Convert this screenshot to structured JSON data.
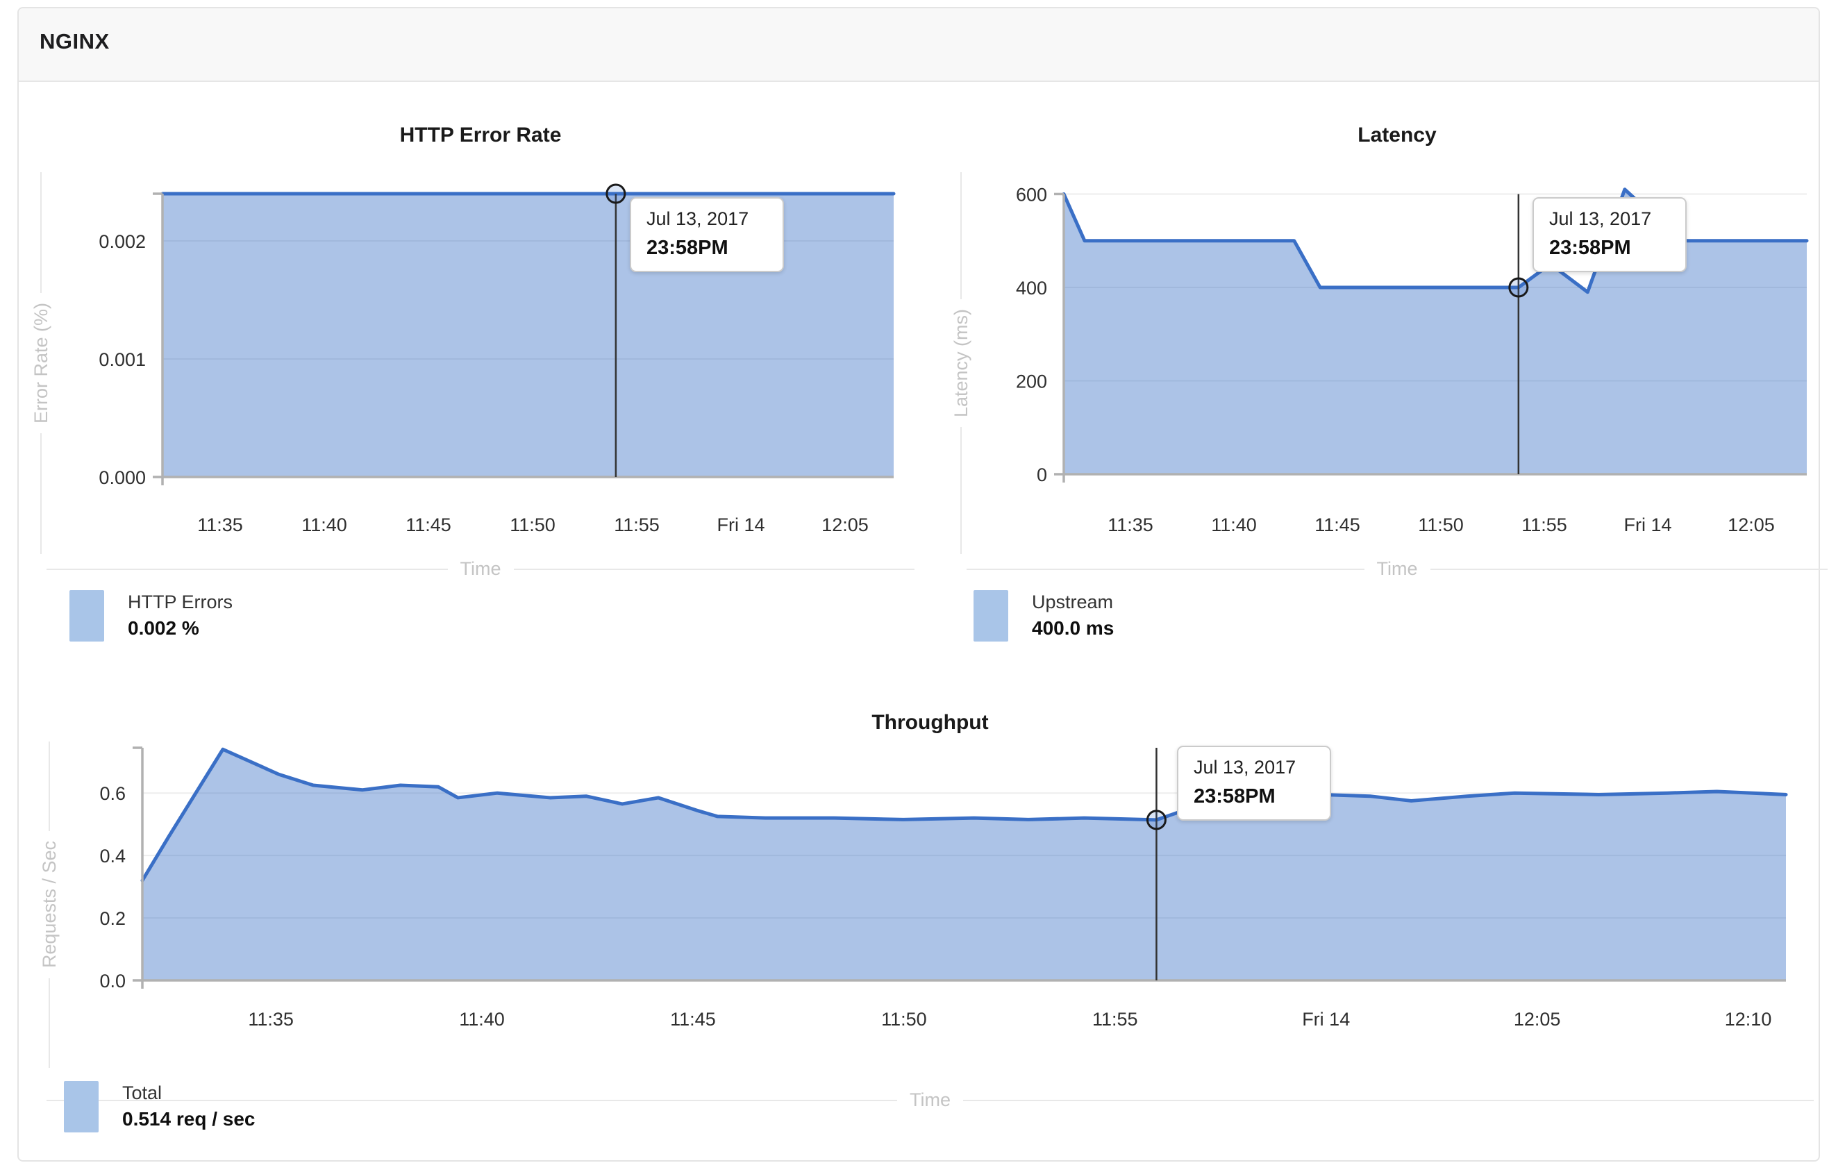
{
  "header": {
    "title": "NGINX"
  },
  "colors": {
    "series_line": "#3a6fc6",
    "series_fill": "#a9c5e8",
    "fill_opacity": 0.55,
    "axis_line": "#b1b1b1",
    "grid_line": "#ededed",
    "tick_text": "#2f2f2f",
    "axis_title": "#c4c4c4",
    "marker_line": "#333333",
    "marker_ring": "#1a1a1a"
  },
  "chart_data": [
    {
      "type": "area",
      "title": "HTTP Error Rate",
      "xlabel": "Time",
      "ylabel": "Error Rate (%)",
      "ylim": [
        0,
        0.0024
      ],
      "axis_top": 0.0024,
      "yticks": [
        {
          "v": 0.002,
          "label": "0.002"
        },
        {
          "v": 0.001,
          "label": "0.001"
        },
        {
          "v": 0,
          "label": "0.000"
        }
      ],
      "xticks": [
        {
          "f": 0.0788,
          "label": "11:35"
        },
        {
          "f": 0.2213,
          "label": "11:40"
        },
        {
          "f": 0.3637,
          "label": "11:45"
        },
        {
          "f": 0.5062,
          "label": "11:50"
        },
        {
          "f": 0.6486,
          "label": "11:55"
        },
        {
          "f": 0.7911,
          "label": "Fri 14"
        },
        {
          "f": 0.9335,
          "label": "12:05"
        }
      ],
      "points": [
        {
          "f": 0,
          "v": 0.0024
        },
        {
          "f": 1,
          "v": 0.0024
        }
      ],
      "marker": {
        "f": 0.62,
        "v": 0.0024
      },
      "tooltip": {
        "date": "Jul 13, 2017",
        "time": "23:58PM"
      },
      "legend": {
        "label": "HTTP Errors",
        "value": "0.002 %"
      }
    },
    {
      "type": "area",
      "title": "Latency",
      "xlabel": "Time",
      "ylabel": "Latency (ms)",
      "ylim": [
        0,
        620
      ],
      "axis_top": 600,
      "yticks": [
        {
          "v": 600,
          "label": "600"
        },
        {
          "v": 400,
          "label": "400"
        },
        {
          "v": 200,
          "label": "200"
        },
        {
          "v": 0,
          "label": "0"
        }
      ],
      "xticks": [
        {
          "f": 0.0897,
          "label": "11:35"
        },
        {
          "f": 0.229,
          "label": "11:40"
        },
        {
          "f": 0.3682,
          "label": "11:45"
        },
        {
          "f": 0.5075,
          "label": "11:50"
        },
        {
          "f": 0.6467,
          "label": "11:55"
        },
        {
          "f": 0.786,
          "label": "Fri 14"
        },
        {
          "f": 0.9252,
          "label": "12:05"
        }
      ],
      "points": [
        {
          "f": 0,
          "v": 600
        },
        {
          "f": 0.028,
          "v": 500
        },
        {
          "f": 0.31,
          "v": 500
        },
        {
          "f": 0.345,
          "v": 400
        },
        {
          "f": 0.612,
          "v": 400
        },
        {
          "f": 0.655,
          "v": 450
        },
        {
          "f": 0.705,
          "v": 390
        },
        {
          "f": 0.755,
          "v": 610
        },
        {
          "f": 0.83,
          "v": 500
        },
        {
          "f": 1,
          "v": 500
        }
      ],
      "marker": {
        "f": 0.612,
        "v": 400
      },
      "tooltip": {
        "date": "Jul 13, 2017",
        "time": "23:58PM"
      },
      "legend": {
        "label": "Upstream",
        "value": "400.0 ms"
      }
    },
    {
      "type": "area",
      "title": "Throughput",
      "xlabel": "Time",
      "ylabel": "Requests / Sec",
      "ylim": [
        0,
        0.745
      ],
      "axis_top": 0.745,
      "yticks": [
        {
          "v": 0.6,
          "label": "0.6"
        },
        {
          "v": 0.4,
          "label": "0.4"
        },
        {
          "v": 0.2,
          "label": "0.2"
        },
        {
          "v": 0,
          "label": "0.0"
        }
      ],
      "xticks": [
        {
          "f": 0.0782,
          "label": "11:35"
        },
        {
          "f": 0.2066,
          "label": "11:40"
        },
        {
          "f": 0.335,
          "label": "11:45"
        },
        {
          "f": 0.4634,
          "label": "11:50"
        },
        {
          "f": 0.5918,
          "label": "11:55"
        },
        {
          "f": 0.7202,
          "label": "Fri 14"
        },
        {
          "f": 0.8486,
          "label": "12:05"
        },
        {
          "f": 0.977,
          "label": "12:10"
        }
      ],
      "points": [
        {
          "f": 0,
          "v": 0.32
        },
        {
          "f": 0.016,
          "v": 0.46
        },
        {
          "f": 0.049,
          "v": 0.74
        },
        {
          "f": 0.083,
          "v": 0.66
        },
        {
          "f": 0.104,
          "v": 0.625
        },
        {
          "f": 0.134,
          "v": 0.61
        },
        {
          "f": 0.157,
          "v": 0.625
        },
        {
          "f": 0.18,
          "v": 0.62
        },
        {
          "f": 0.192,
          "v": 0.585
        },
        {
          "f": 0.216,
          "v": 0.6
        },
        {
          "f": 0.248,
          "v": 0.585
        },
        {
          "f": 0.27,
          "v": 0.59
        },
        {
          "f": 0.292,
          "v": 0.565
        },
        {
          "f": 0.314,
          "v": 0.585
        },
        {
          "f": 0.337,
          "v": 0.545
        },
        {
          "f": 0.35,
          "v": 0.525
        },
        {
          "f": 0.379,
          "v": 0.52
        },
        {
          "f": 0.421,
          "v": 0.52
        },
        {
          "f": 0.463,
          "v": 0.515
        },
        {
          "f": 0.506,
          "v": 0.52
        },
        {
          "f": 0.539,
          "v": 0.515
        },
        {
          "f": 0.573,
          "v": 0.52
        },
        {
          "f": 0.617,
          "v": 0.514
        },
        {
          "f": 0.645,
          "v": 0.565
        },
        {
          "f": 0.675,
          "v": 0.6
        },
        {
          "f": 0.717,
          "v": 0.595
        },
        {
          "f": 0.747,
          "v": 0.59
        },
        {
          "f": 0.772,
          "v": 0.575
        },
        {
          "f": 0.806,
          "v": 0.59
        },
        {
          "f": 0.835,
          "v": 0.6
        },
        {
          "f": 0.886,
          "v": 0.595
        },
        {
          "f": 0.928,
          "v": 0.6
        },
        {
          "f": 0.958,
          "v": 0.605
        },
        {
          "f": 1,
          "v": 0.595
        }
      ],
      "marker": {
        "f": 0.617,
        "v": 0.514
      },
      "tooltip": {
        "date": "Jul 13, 2017",
        "time": "23:58PM"
      },
      "legend": {
        "label": "Total",
        "value": "0.514 req / sec"
      }
    }
  ]
}
